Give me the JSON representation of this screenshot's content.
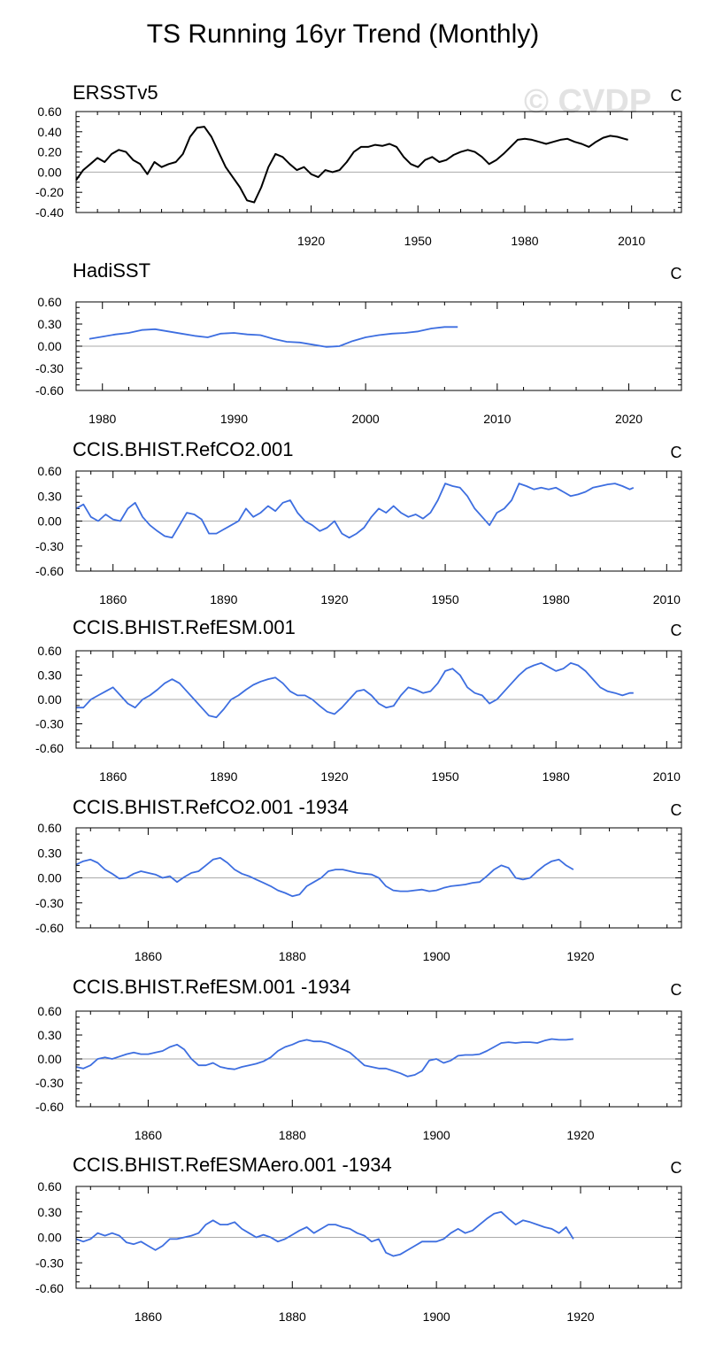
{
  "figure": {
    "title": "TS Running 16yr Trend (Monthly)",
    "watermark": "© CVDP"
  },
  "chart_data": [
    {
      "type": "line",
      "title": "ERSSTv5",
      "units": "C",
      "color": "#000000",
      "xlim": [
        1854,
        2024
      ],
      "xticks": [
        1920,
        1950,
        1980,
        2010
      ],
      "ylim": [
        -0.4,
        0.6
      ],
      "yticks": [
        -0.4,
        -0.2,
        0.0,
        0.2,
        0.4,
        0.6
      ],
      "ytick_labels": [
        "-0.40",
        "-0.20",
        "0.00",
        "0.20",
        "0.40",
        "0.60"
      ],
      "x": [
        1854,
        1856,
        1858,
        1860,
        1862,
        1864,
        1866,
        1868,
        1870,
        1872,
        1874,
        1876,
        1878,
        1880,
        1882,
        1884,
        1886,
        1888,
        1890,
        1892,
        1894,
        1896,
        1898,
        1900,
        1902,
        1904,
        1906,
        1908,
        1910,
        1912,
        1914,
        1916,
        1918,
        1920,
        1922,
        1924,
        1926,
        1928,
        1930,
        1932,
        1934,
        1936,
        1938,
        1940,
        1942,
        1944,
        1946,
        1948,
        1950,
        1952,
        1954,
        1956,
        1958,
        1960,
        1962,
        1964,
        1966,
        1968,
        1970,
        1972,
        1974,
        1976,
        1978,
        1980,
        1982,
        1984,
        1986,
        1988,
        1990,
        1992,
        1994,
        1996,
        1998,
        2000,
        2002,
        2004,
        2006,
        2008,
        2009
      ],
      "values": [
        -0.08,
        0.02,
        0.08,
        0.14,
        0.1,
        0.18,
        0.22,
        0.2,
        0.12,
        0.08,
        -0.02,
        0.1,
        0.05,
        0.08,
        0.1,
        0.18,
        0.35,
        0.44,
        0.45,
        0.35,
        0.2,
        0.05,
        -0.05,
        -0.15,
        -0.28,
        -0.3,
        -0.15,
        0.05,
        0.18,
        0.15,
        0.08,
        0.02,
        0.05,
        -0.02,
        -0.05,
        0.02,
        0.0,
        0.02,
        0.1,
        0.2,
        0.25,
        0.25,
        0.27,
        0.26,
        0.28,
        0.25,
        0.15,
        0.08,
        0.05,
        0.12,
        0.15,
        0.1,
        0.12,
        0.17,
        0.2,
        0.22,
        0.2,
        0.15,
        0.08,
        0.12,
        0.18,
        0.25,
        0.32,
        0.33,
        0.32,
        0.3,
        0.28,
        0.3,
        0.32,
        0.33,
        0.3,
        0.28,
        0.25,
        0.3,
        0.34,
        0.36,
        0.35,
        0.33,
        0.32
      ]
    },
    {
      "type": "line",
      "title": "HadiSST",
      "units": "C",
      "color": "#3d6ee0",
      "xlim": [
        1978,
        2024
      ],
      "xticks": [
        1980,
        1990,
        2000,
        2010,
        2020
      ],
      "ylim": [
        -0.6,
        0.6
      ],
      "yticks": [
        -0.6,
        -0.3,
        0.0,
        0.3,
        0.6
      ],
      "ytick_labels": [
        "-0.60",
        "-0.30",
        "0.00",
        "0.30",
        "0.60"
      ],
      "x": [
        1979,
        1980,
        1981,
        1982,
        1983,
        1984,
        1985,
        1986,
        1987,
        1988,
        1989,
        1990,
        1991,
        1992,
        1993,
        1994,
        1995,
        1996,
        1997,
        1998,
        1999,
        2000,
        2001,
        2002,
        2003,
        2004,
        2005,
        2006,
        2007
      ],
      "values": [
        0.1,
        0.13,
        0.16,
        0.18,
        0.22,
        0.23,
        0.2,
        0.17,
        0.14,
        0.12,
        0.17,
        0.18,
        0.16,
        0.15,
        0.1,
        0.06,
        0.05,
        0.02,
        -0.01,
        0.0,
        0.07,
        0.12,
        0.15,
        0.17,
        0.18,
        0.2,
        0.24,
        0.26,
        0.26
      ]
    },
    {
      "type": "line",
      "title": "CCIS.BHIST.RefCO2.001",
      "units": "C",
      "color": "#3d6ee0",
      "xlim": [
        1850,
        2014
      ],
      "xticks": [
        1860,
        1890,
        1920,
        1950,
        1980,
        2010
      ],
      "ylim": [
        -0.6,
        0.6
      ],
      "yticks": [
        -0.6,
        -0.3,
        0.0,
        0.3,
        0.6
      ],
      "ytick_labels": [
        "-0.60",
        "-0.30",
        "0.00",
        "0.30",
        "0.60"
      ],
      "x": [
        1850,
        1852,
        1854,
        1856,
        1858,
        1860,
        1862,
        1864,
        1866,
        1868,
        1870,
        1872,
        1874,
        1876,
        1878,
        1880,
        1882,
        1884,
        1886,
        1888,
        1890,
        1892,
        1894,
        1896,
        1898,
        1900,
        1902,
        1904,
        1906,
        1908,
        1910,
        1912,
        1914,
        1916,
        1918,
        1920,
        1922,
        1924,
        1926,
        1928,
        1930,
        1932,
        1934,
        1936,
        1938,
        1940,
        1942,
        1944,
        1946,
        1948,
        1950,
        1952,
        1954,
        1956,
        1958,
        1960,
        1962,
        1964,
        1966,
        1968,
        1970,
        1972,
        1974,
        1976,
        1978,
        1980,
        1982,
        1984,
        1986,
        1988,
        1990,
        1992,
        1994,
        1996,
        1998,
        2000,
        2001
      ],
      "values": [
        0.15,
        0.2,
        0.05,
        0.0,
        0.08,
        0.02,
        0.0,
        0.15,
        0.22,
        0.05,
        -0.05,
        -0.12,
        -0.18,
        -0.2,
        -0.05,
        0.1,
        0.08,
        0.02,
        -0.15,
        -0.15,
        -0.1,
        -0.05,
        0.0,
        0.15,
        0.05,
        0.1,
        0.18,
        0.12,
        0.22,
        0.25,
        0.1,
        0.0,
        -0.05,
        -0.12,
        -0.08,
        0.0,
        -0.15,
        -0.2,
        -0.15,
        -0.08,
        0.05,
        0.15,
        0.1,
        0.18,
        0.1,
        0.05,
        0.08,
        0.03,
        0.1,
        0.25,
        0.45,
        0.42,
        0.4,
        0.3,
        0.15,
        0.05,
        -0.05,
        0.1,
        0.15,
        0.25,
        0.45,
        0.42,
        0.38,
        0.4,
        0.38,
        0.4,
        0.35,
        0.3,
        0.32,
        0.35,
        0.4,
        0.42,
        0.44,
        0.45,
        0.42,
        0.38,
        0.4
      ]
    },
    {
      "type": "line",
      "title": "CCIS.BHIST.RefESM.001",
      "units": "C",
      "color": "#3d6ee0",
      "xlim": [
        1850,
        2014
      ],
      "xticks": [
        1860,
        1890,
        1920,
        1950,
        1980,
        2010
      ],
      "ylim": [
        -0.6,
        0.6
      ],
      "yticks": [
        -0.6,
        -0.3,
        0.0,
        0.3,
        0.6
      ],
      "ytick_labels": [
        "-0.60",
        "-0.30",
        "0.00",
        "0.30",
        "0.60"
      ],
      "x": [
        1850,
        1852,
        1854,
        1856,
        1858,
        1860,
        1862,
        1864,
        1866,
        1868,
        1870,
        1872,
        1874,
        1876,
        1878,
        1880,
        1882,
        1884,
        1886,
        1888,
        1890,
        1892,
        1894,
        1896,
        1898,
        1900,
        1902,
        1904,
        1906,
        1908,
        1910,
        1912,
        1914,
        1916,
        1918,
        1920,
        1922,
        1924,
        1926,
        1928,
        1930,
        1932,
        1934,
        1936,
        1938,
        1940,
        1942,
        1944,
        1946,
        1948,
        1950,
        1952,
        1954,
        1956,
        1958,
        1960,
        1962,
        1964,
        1966,
        1968,
        1970,
        1972,
        1974,
        1976,
        1978,
        1980,
        1982,
        1984,
        1986,
        1988,
        1990,
        1992,
        1994,
        1996,
        1998,
        2000,
        2001
      ],
      "values": [
        -0.1,
        -0.1,
        0.0,
        0.05,
        0.1,
        0.15,
        0.05,
        -0.05,
        -0.1,
        0.0,
        0.05,
        0.12,
        0.2,
        0.25,
        0.2,
        0.1,
        0.0,
        -0.1,
        -0.2,
        -0.22,
        -0.12,
        0.0,
        0.05,
        0.12,
        0.18,
        0.22,
        0.25,
        0.27,
        0.2,
        0.1,
        0.05,
        0.05,
        0.0,
        -0.08,
        -0.15,
        -0.18,
        -0.1,
        0.0,
        0.1,
        0.12,
        0.05,
        -0.05,
        -0.1,
        -0.08,
        0.05,
        0.15,
        0.12,
        0.08,
        0.1,
        0.2,
        0.35,
        0.38,
        0.3,
        0.15,
        0.08,
        0.05,
        -0.05,
        0.0,
        0.1,
        0.2,
        0.3,
        0.38,
        0.42,
        0.45,
        0.4,
        0.35,
        0.38,
        0.45,
        0.42,
        0.35,
        0.25,
        0.15,
        0.1,
        0.08,
        0.05,
        0.08,
        0.08
      ]
    },
    {
      "type": "line",
      "title": "CCIS.BHIST.RefCO2.001 -1934",
      "units": "C",
      "color": "#3d6ee0",
      "xlim": [
        1850,
        1934
      ],
      "xticks": [
        1860,
        1880,
        1900,
        1920
      ],
      "ylim": [
        -0.6,
        0.6
      ],
      "yticks": [
        -0.6,
        -0.3,
        0.0,
        0.3,
        0.6
      ],
      "ytick_labels": [
        "-0.60",
        "-0.30",
        "0.00",
        "0.30",
        "0.60"
      ],
      "x": [
        1850,
        1851,
        1852,
        1853,
        1854,
        1855,
        1856,
        1857,
        1858,
        1859,
        1860,
        1861,
        1862,
        1863,
        1864,
        1865,
        1866,
        1867,
        1868,
        1869,
        1870,
        1871,
        1872,
        1873,
        1874,
        1875,
        1876,
        1877,
        1878,
        1879,
        1880,
        1881,
        1882,
        1883,
        1884,
        1885,
        1886,
        1887,
        1888,
        1889,
        1890,
        1891,
        1892,
        1893,
        1894,
        1895,
        1896,
        1897,
        1898,
        1899,
        1900,
        1901,
        1902,
        1903,
        1904,
        1905,
        1906,
        1907,
        1908,
        1909,
        1910,
        1911,
        1912,
        1913,
        1914,
        1915,
        1916,
        1917,
        1918,
        1919
      ],
      "values": [
        0.16,
        0.2,
        0.22,
        0.18,
        0.1,
        0.05,
        -0.01,
        0.0,
        0.05,
        0.08,
        0.06,
        0.04,
        0.0,
        0.02,
        -0.05,
        0.01,
        0.06,
        0.08,
        0.15,
        0.22,
        0.24,
        0.18,
        0.1,
        0.05,
        0.02,
        -0.02,
        -0.06,
        -0.1,
        -0.15,
        -0.18,
        -0.22,
        -0.2,
        -0.1,
        -0.05,
        0.0,
        0.08,
        0.1,
        0.1,
        0.08,
        0.06,
        0.05,
        0.04,
        0.0,
        -0.1,
        -0.15,
        -0.16,
        -0.16,
        -0.15,
        -0.14,
        -0.16,
        -0.15,
        -0.12,
        -0.1,
        -0.09,
        -0.08,
        -0.06,
        -0.05,
        0.02,
        0.1,
        0.15,
        0.12,
        0.0,
        -0.02,
        0.0,
        0.08,
        0.15,
        0.2,
        0.22,
        0.15,
        0.1
      ]
    },
    {
      "type": "line",
      "title": "CCIS.BHIST.RefESM.001 -1934",
      "units": "C",
      "color": "#3d6ee0",
      "xlim": [
        1850,
        1934
      ],
      "xticks": [
        1860,
        1880,
        1900,
        1920
      ],
      "ylim": [
        -0.6,
        0.6
      ],
      "yticks": [
        -0.6,
        -0.3,
        0.0,
        0.3,
        0.6
      ],
      "ytick_labels": [
        "-0.60",
        "-0.30",
        "0.00",
        "0.30",
        "0.60"
      ],
      "x": [
        1850,
        1851,
        1852,
        1853,
        1854,
        1855,
        1856,
        1857,
        1858,
        1859,
        1860,
        1861,
        1862,
        1863,
        1864,
        1865,
        1866,
        1867,
        1868,
        1869,
        1870,
        1871,
        1872,
        1873,
        1874,
        1875,
        1876,
        1877,
        1878,
        1879,
        1880,
        1881,
        1882,
        1883,
        1884,
        1885,
        1886,
        1887,
        1888,
        1889,
        1890,
        1891,
        1892,
        1893,
        1894,
        1895,
        1896,
        1897,
        1898,
        1899,
        1900,
        1901,
        1902,
        1903,
        1904,
        1905,
        1906,
        1907,
        1908,
        1909,
        1910,
        1911,
        1912,
        1913,
        1914,
        1915,
        1916,
        1917,
        1918,
        1919
      ],
      "values": [
        -0.1,
        -0.12,
        -0.08,
        0.0,
        0.02,
        0.0,
        0.03,
        0.06,
        0.08,
        0.06,
        0.06,
        0.08,
        0.1,
        0.15,
        0.18,
        0.12,
        0.0,
        -0.08,
        -0.08,
        -0.05,
        -0.1,
        -0.12,
        -0.13,
        -0.1,
        -0.08,
        -0.06,
        -0.03,
        0.02,
        0.1,
        0.15,
        0.18,
        0.22,
        0.24,
        0.22,
        0.22,
        0.2,
        0.16,
        0.12,
        0.08,
        0.0,
        -0.08,
        -0.1,
        -0.12,
        -0.12,
        -0.15,
        -0.18,
        -0.22,
        -0.2,
        -0.15,
        -0.02,
        0.0,
        -0.05,
        -0.02,
        0.04,
        0.05,
        0.05,
        0.06,
        0.1,
        0.15,
        0.2,
        0.21,
        0.2,
        0.21,
        0.21,
        0.2,
        0.23,
        0.25,
        0.24,
        0.24,
        0.25
      ]
    },
    {
      "type": "line",
      "title": "CCIS.BHIST.RefESMAero.001 -1934",
      "units": "C",
      "color": "#3d6ee0",
      "xlim": [
        1850,
        1934
      ],
      "xticks": [
        1860,
        1880,
        1900,
        1920
      ],
      "ylim": [
        -0.6,
        0.6
      ],
      "yticks": [
        -0.6,
        -0.3,
        0.0,
        0.3,
        0.6
      ],
      "ytick_labels": [
        "-0.60",
        "-0.30",
        "0.00",
        "0.30",
        "0.60"
      ],
      "x": [
        1850,
        1851,
        1852,
        1853,
        1854,
        1855,
        1856,
        1857,
        1858,
        1859,
        1860,
        1861,
        1862,
        1863,
        1864,
        1865,
        1866,
        1867,
        1868,
        1869,
        1870,
        1871,
        1872,
        1873,
        1874,
        1875,
        1876,
        1877,
        1878,
        1879,
        1880,
        1881,
        1882,
        1883,
        1884,
        1885,
        1886,
        1887,
        1888,
        1889,
        1890,
        1891,
        1892,
        1893,
        1894,
        1895,
        1896,
        1897,
        1898,
        1899,
        1900,
        1901,
        1902,
        1903,
        1904,
        1905,
        1906,
        1907,
        1908,
        1909,
        1910,
        1911,
        1912,
        1913,
        1914,
        1915,
        1916,
        1917,
        1918,
        1919
      ],
      "values": [
        -0.02,
        -0.05,
        -0.02,
        0.05,
        0.02,
        0.05,
        0.02,
        -0.06,
        -0.08,
        -0.05,
        -0.1,
        -0.15,
        -0.1,
        -0.02,
        -0.02,
        0.0,
        0.02,
        0.05,
        0.15,
        0.2,
        0.15,
        0.15,
        0.18,
        0.1,
        0.05,
        0.0,
        0.03,
        0.0,
        -0.05,
        -0.02,
        0.03,
        0.08,
        0.12,
        0.05,
        0.1,
        0.15,
        0.15,
        0.12,
        0.1,
        0.05,
        0.02,
        -0.05,
        -0.02,
        -0.18,
        -0.22,
        -0.2,
        -0.15,
        -0.1,
        -0.05,
        -0.05,
        -0.05,
        -0.02,
        0.05,
        0.1,
        0.05,
        0.08,
        0.15,
        0.22,
        0.28,
        0.3,
        0.22,
        0.15,
        0.2,
        0.18,
        0.15,
        0.12,
        0.1,
        0.05,
        0.12,
        -0.02
      ]
    }
  ]
}
